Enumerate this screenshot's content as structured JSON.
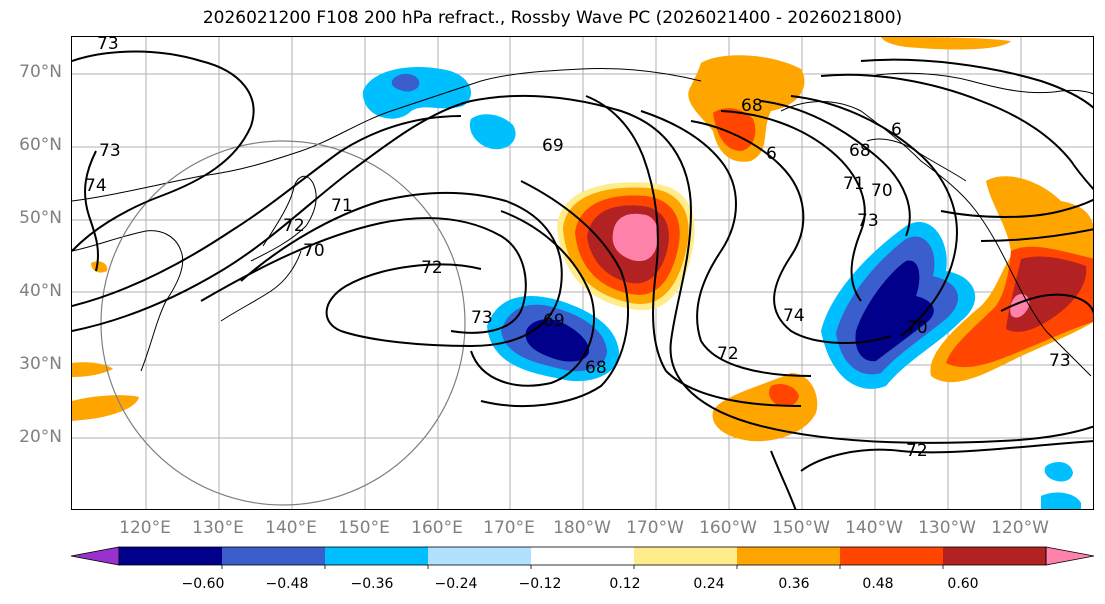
{
  "title": "2026021200 F108 200 hPa refract., Rossby Wave PC (2026021400 - 2026021800)",
  "lat_labels": [
    "70°N",
    "60°N",
    "50°N",
    "40°N",
    "30°N",
    "20°N"
  ],
  "lon_labels": [
    "120°E",
    "130°E",
    "140°E",
    "150°E",
    "160°E",
    "170°E",
    "180°W",
    "170°W",
    "160°W",
    "150°W",
    "140°W",
    "130°W",
    "120°W"
  ],
  "colorbar": {
    "colors": [
      "#9932cc",
      "#00008b",
      "#3a5fcd",
      "#00bfff",
      "#b0e2ff",
      "#ffffff",
      "#ffec8b",
      "#ffa500",
      "#ff4500",
      "#b22222",
      "#ff82ab"
    ],
    "tick_labels": [
      "−0.60",
      "−0.48",
      "−0.36",
      "−0.24",
      "−0.12",
      "0.12",
      "0.24",
      "0.36",
      "0.48",
      "0.60"
    ]
  },
  "contour_labels": [
    "73",
    "74",
    "73",
    "72",
    "71",
    "70",
    "72",
    "73",
    "69",
    "69",
    "68",
    "68",
    "6",
    "68",
    "70",
    "71",
    "73",
    "74",
    "72",
    "70",
    "73",
    "72",
    "6"
  ],
  "colors": {
    "grid": "#b0b0b0",
    "circle": "#808080",
    "contour": "#000000"
  }
}
